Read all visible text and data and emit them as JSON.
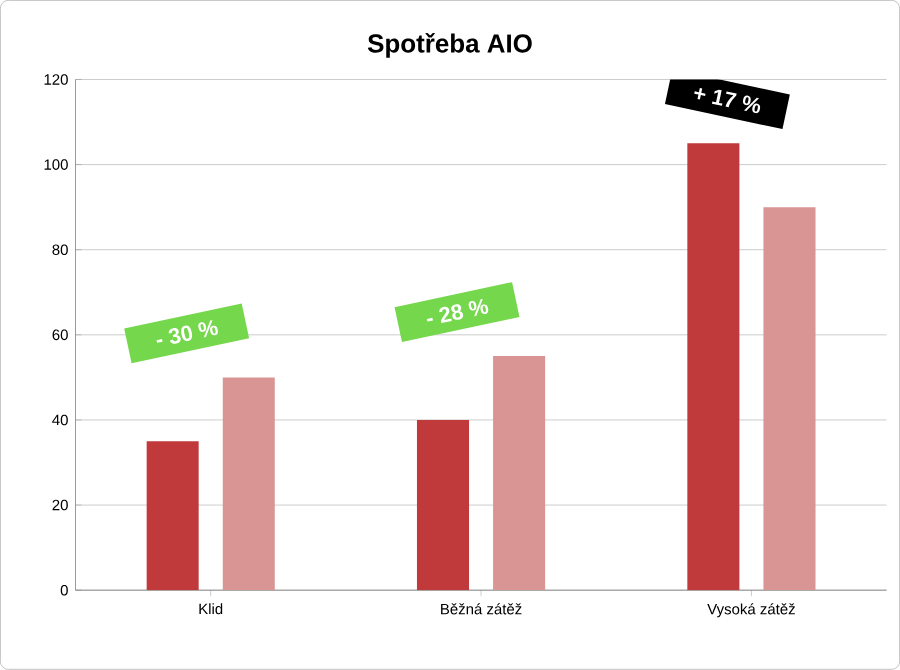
{
  "chart_data": {
    "type": "bar",
    "title": "Spotřeba AIO",
    "categories": [
      "Klid",
      "Běžná zátěž",
      "Vysoká zátěž"
    ],
    "series": [
      {
        "color": "#c0393b",
        "values": [
          35,
          40,
          105
        ]
      },
      {
        "color": "#d99594",
        "values": [
          50,
          55,
          90
        ]
      }
    ],
    "ylim": [
      0,
      120
    ],
    "yticks": [
      0,
      20,
      40,
      60,
      80,
      100,
      120
    ],
    "grid": "y",
    "annotations": [
      "- 30 %",
      "- 28 %",
      "+ 17 %"
    ]
  }
}
